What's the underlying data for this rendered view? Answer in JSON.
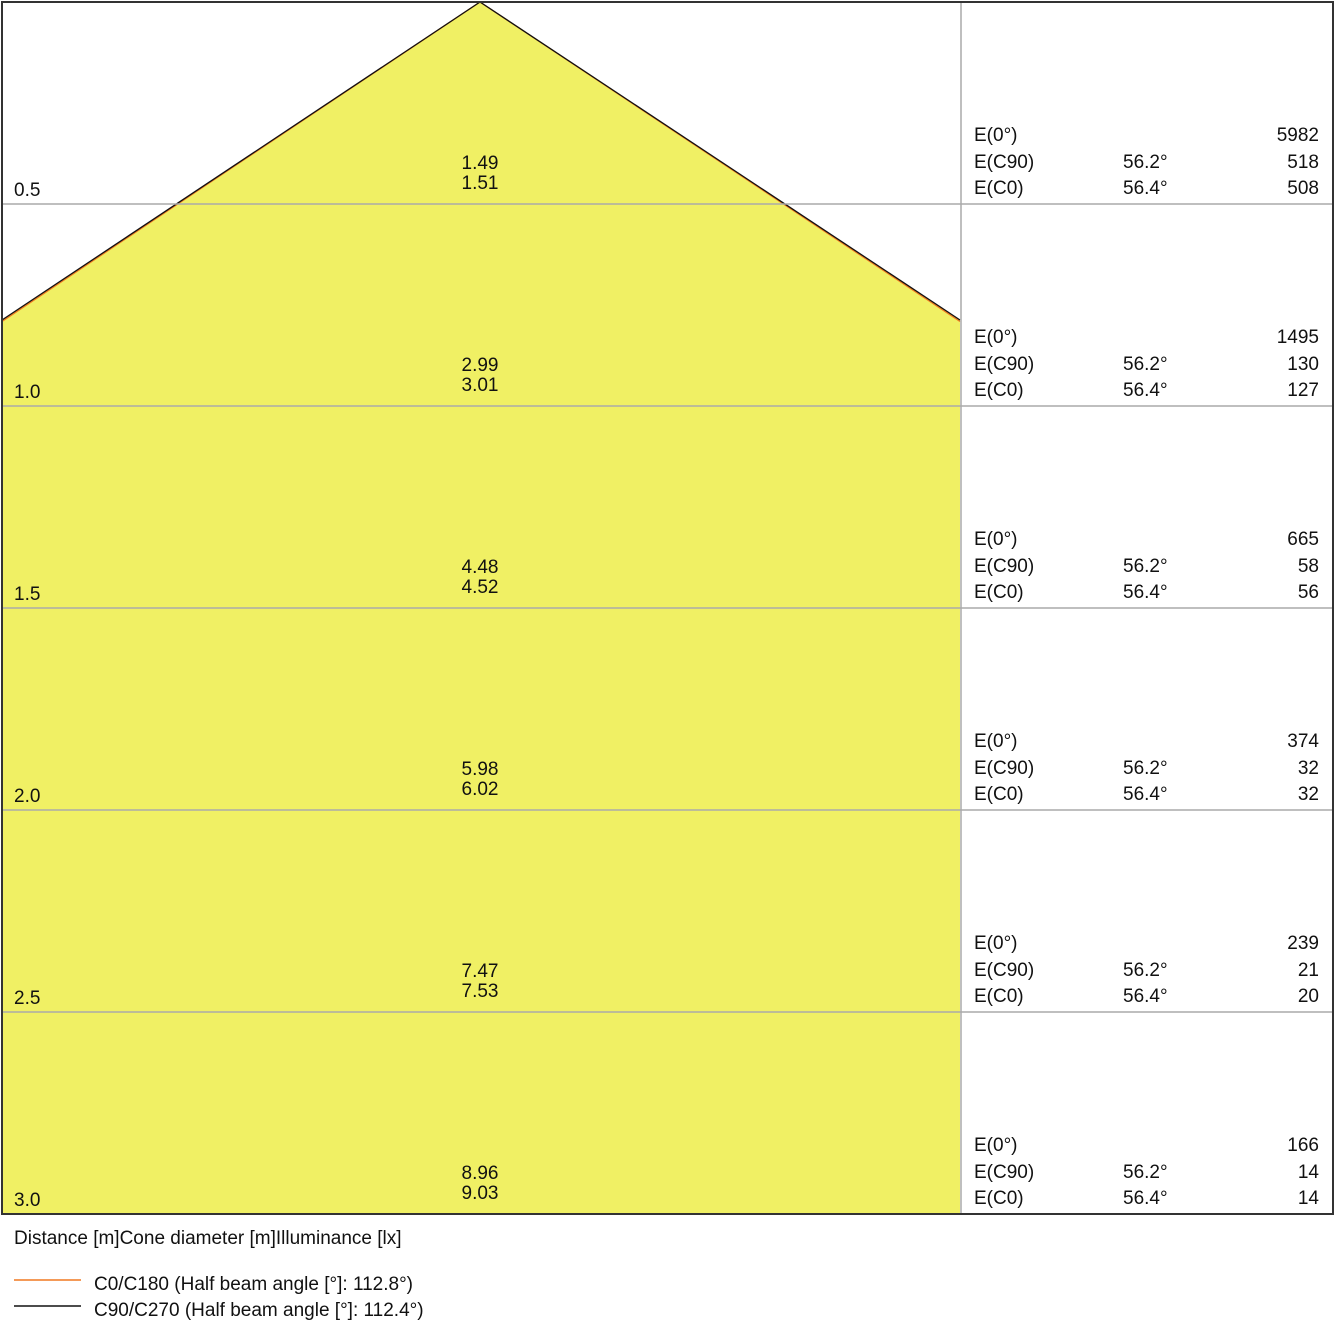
{
  "chart_data": {
    "type": "cone-diagram",
    "footer_label": "Distance [m]Cone diameter [m]Illuminance [lx]",
    "fill_color": "#f0f064",
    "rows": [
      {
        "distance": "0.5",
        "diameters": [
          "1.49",
          "1.51"
        ],
        "illuminance": [
          {
            "label": "E(0°)",
            "angle": "",
            "value": "5982"
          },
          {
            "label": "E(C90)",
            "angle": "56.2°",
            "value": "518"
          },
          {
            "label": "E(C0)",
            "angle": "56.4°",
            "value": "508"
          }
        ]
      },
      {
        "distance": "1.0",
        "diameters": [
          "2.99",
          "3.01"
        ],
        "illuminance": [
          {
            "label": "E(0°)",
            "angle": "",
            "value": "1495"
          },
          {
            "label": "E(C90)",
            "angle": "56.2°",
            "value": "130"
          },
          {
            "label": "E(C0)",
            "angle": "56.4°",
            "value": "127"
          }
        ]
      },
      {
        "distance": "1.5",
        "diameters": [
          "4.48",
          "4.52"
        ],
        "illuminance": [
          {
            "label": "E(0°)",
            "angle": "",
            "value": "665"
          },
          {
            "label": "E(C90)",
            "angle": "56.2°",
            "value": "58"
          },
          {
            "label": "E(C0)",
            "angle": "56.4°",
            "value": "56"
          }
        ]
      },
      {
        "distance": "2.0",
        "diameters": [
          "5.98",
          "6.02"
        ],
        "illuminance": [
          {
            "label": "E(0°)",
            "angle": "",
            "value": "374"
          },
          {
            "label": "E(C90)",
            "angle": "56.2°",
            "value": "32"
          },
          {
            "label": "E(C0)",
            "angle": "56.4°",
            "value": "32"
          }
        ]
      },
      {
        "distance": "2.5",
        "diameters": [
          "7.47",
          "7.53"
        ],
        "illuminance": [
          {
            "label": "E(0°)",
            "angle": "",
            "value": "239"
          },
          {
            "label": "E(C90)",
            "angle": "56.2°",
            "value": "21"
          },
          {
            "label": "E(C0)",
            "angle": "56.4°",
            "value": "20"
          }
        ]
      },
      {
        "distance": "3.0",
        "diameters": [
          "8.96",
          "9.03"
        ],
        "illuminance": [
          {
            "label": "E(0°)",
            "angle": "",
            "value": "166"
          },
          {
            "label": "E(C90)",
            "angle": "56.2°",
            "value": "14"
          },
          {
            "label": "E(C0)",
            "angle": "56.4°",
            "value": "14"
          }
        ]
      }
    ],
    "legend": [
      {
        "name": "C0/C180 (Half beam angle [°]: 112.8°)",
        "color": "#f07820",
        "half_beam_angle": 112.8
      },
      {
        "name": "C90/C270 (Half beam angle [°]: 112.4°)",
        "color": "#111111",
        "half_beam_angle": 112.4
      }
    ]
  }
}
